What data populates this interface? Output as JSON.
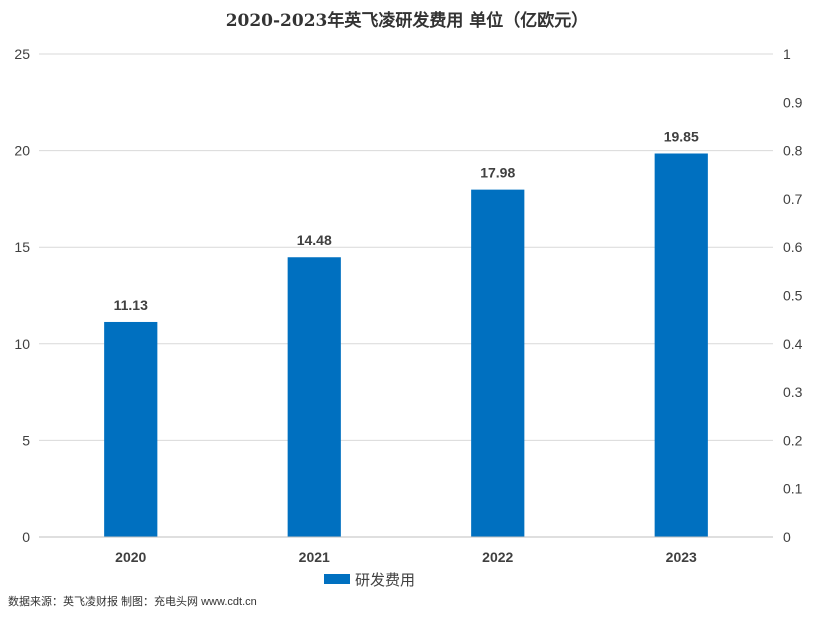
{
  "chart_data": {
    "type": "bar",
    "title": "2020-2023年英飞凌研发费用  单位（亿欧元）",
    "categories": [
      "2020",
      "2021",
      "2022",
      "2023"
    ],
    "series": [
      {
        "name": "研发费用",
        "values": [
          11.13,
          14.48,
          17.98,
          19.85
        ],
        "color": "#0070C0"
      }
    ],
    "data_labels": [
      "11.13",
      "14.48",
      "17.98",
      "19.85"
    ],
    "ylim": [
      0,
      25
    ],
    "yticks": [
      "0",
      "5",
      "10",
      "15",
      "20",
      "25"
    ],
    "y2lim": [
      0,
      1
    ],
    "y2ticks": [
      "0",
      "0.1",
      "0.2",
      "0.3",
      "0.4",
      "0.5",
      "0.6",
      "0.7",
      "0.8",
      "0.9",
      "1"
    ],
    "xlabel": "",
    "ylabel": "",
    "grid": true,
    "legend": "bottom"
  },
  "source_note": "数据来源：英飞凌财报 制图：充电头网 www.cdt.cn",
  "colors": {
    "bar": "#0070C0",
    "grid": "#D9D9D9",
    "axis": "#BFBFBF"
  }
}
